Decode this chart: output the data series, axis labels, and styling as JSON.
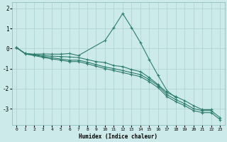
{
  "xlabel": "Humidex (Indice chaleur)",
  "bg_color": "#cceaea",
  "line_color": "#2e7d6e",
  "grid_color": "#aacfcf",
  "x_values": [
    0,
    1,
    2,
    3,
    4,
    5,
    6,
    7,
    8,
    9,
    10,
    11,
    12,
    13,
    14,
    15,
    16,
    17,
    18,
    19,
    20,
    21,
    22,
    23
  ],
  "line1": [
    0.05,
    -0.25,
    -0.28,
    -0.27,
    -0.28,
    -0.28,
    -0.25,
    -0.35,
    null,
    null,
    0.4,
    1.05,
    1.75,
    1.05,
    0.3,
    -0.55,
    -1.35,
    -2.1,
    -2.45,
    null,
    null,
    null,
    null,
    null
  ],
  "line2": [
    0.05,
    -0.25,
    -0.3,
    -0.35,
    -0.38,
    -0.4,
    -0.42,
    -0.45,
    -0.55,
    -0.65,
    -0.7,
    -0.85,
    -0.9,
    -1.05,
    -1.15,
    -1.45,
    -1.8,
    -2.2,
    -2.4,
    -2.6,
    -2.85,
    -3.05,
    -3.05,
    null
  ],
  "line3": [
    0.05,
    -0.25,
    -0.32,
    -0.4,
    -0.46,
    -0.52,
    -0.58,
    -0.58,
    -0.68,
    -0.8,
    -0.92,
    -1.0,
    -1.1,
    -1.2,
    -1.3,
    -1.55,
    -1.85,
    -2.3,
    -2.55,
    -2.75,
    -3.0,
    -3.1,
    -3.1,
    -3.45
  ],
  "line4": [
    0.05,
    -0.27,
    -0.35,
    -0.44,
    -0.52,
    -0.58,
    -0.65,
    -0.65,
    -0.76,
    -0.88,
    -1.0,
    -1.1,
    -1.2,
    -1.3,
    -1.4,
    -1.65,
    -1.95,
    -2.4,
    -2.65,
    -2.85,
    -3.1,
    -3.2,
    -3.2,
    -3.55
  ],
  "ylim": [
    -3.8,
    2.3
  ],
  "yticks": [
    -3,
    -2,
    -1,
    0,
    1,
    2
  ]
}
